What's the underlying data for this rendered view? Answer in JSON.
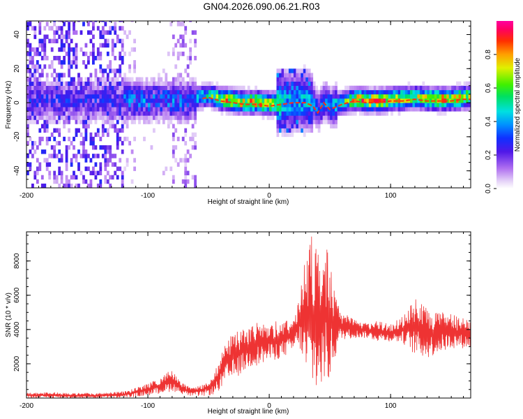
{
  "title": "GN04.2026.090.06.21.R03",
  "chart_data": [
    {
      "type": "heatmap",
      "panel": "spectrogram",
      "xlabel": "Height of straight line (km)",
      "ylabel": "Frequency (Hz)",
      "xlim": [
        -200,
        166
      ],
      "ylim": [
        -50,
        48
      ],
      "x_ticks": [
        "-200",
        "-100",
        "0",
        "100"
      ],
      "y_ticks": [
        "-40",
        "-20",
        "0",
        "20",
        "40"
      ],
      "colorbar": {
        "label": "Normalized spectral amplitude",
        "range": [
          0,
          1
        ],
        "ticks": [
          "0.0",
          "0.2",
          "0.4",
          "0.6",
          "0.8"
        ]
      },
      "ridge": {
        "description": "dominant frequency ridge",
        "x": [
          -60,
          -50,
          -40,
          -30,
          -20,
          -10,
          0,
          10,
          20,
          30,
          36,
          40,
          45,
          50,
          60,
          70,
          80,
          90,
          100,
          110,
          120,
          130,
          140,
          150,
          160,
          166
        ],
        "y": [
          2,
          3,
          1,
          0,
          -1,
          -1,
          -2,
          -1,
          0,
          0,
          -2,
          -6,
          0,
          -4,
          -1,
          1,
          0,
          0,
          1,
          1,
          2,
          1,
          1,
          1,
          2,
          2
        ],
        "amplitude": [
          0.55,
          0.6,
          0.8,
          0.9,
          0.85,
          0.9,
          0.85,
          0.5,
          0.45,
          0.5,
          0.4,
          0.35,
          0.4,
          0.45,
          0.6,
          0.85,
          0.9,
          0.9,
          0.9,
          0.85,
          0.8,
          0.85,
          0.9,
          0.85,
          0.8,
          0.8
        ]
      }
    },
    {
      "type": "line",
      "panel": "snr",
      "xlabel": "Height of straight line (km)",
      "ylabel": "SNR (10 * v/v)",
      "xlim": [
        -200,
        166
      ],
      "ylim": [
        0,
        9700
      ],
      "x_ticks": [
        "-200",
        "-100",
        "0",
        "100"
      ],
      "y_ticks": [
        "2000",
        "4000",
        "6000",
        "8000"
      ],
      "series": [
        {
          "color": "#ee3333",
          "x": [
            -200,
            -180,
            -160,
            -140,
            -120,
            -105,
            -95,
            -85,
            -80,
            -75,
            -65,
            -55,
            -45,
            -35,
            -25,
            -15,
            -5,
            5,
            15,
            20,
            25,
            30,
            35,
            40,
            45,
            50,
            55,
            60,
            70,
            80,
            90,
            100,
            110,
            120,
            130,
            140,
            150,
            160,
            166
          ],
          "envelope_low": [
            0,
            0,
            0,
            0,
            0,
            100,
            200,
            300,
            400,
            300,
            100,
            100,
            200,
            800,
            1300,
            1800,
            2000,
            2200,
            2500,
            2700,
            3000,
            1000,
            500,
            300,
            500,
            1000,
            2500,
            3400,
            3500,
            3500,
            3300,
            3300,
            3200,
            2500,
            2300,
            2600,
            2900,
            2900,
            2900
          ],
          "envelope_high": [
            300,
            350,
            300,
            300,
            400,
            700,
            1000,
            1500,
            1700,
            1100,
            600,
            800,
            1500,
            3500,
            4000,
            4300,
            4500,
            4500,
            4600,
            4700,
            6000,
            8600,
            9700,
            8400,
            9600,
            8000,
            6000,
            5000,
            4600,
            4400,
            4500,
            4300,
            4800,
            5800,
            5300,
            5100,
            4900,
            4700,
            4600
          ]
        }
      ]
    }
  ]
}
